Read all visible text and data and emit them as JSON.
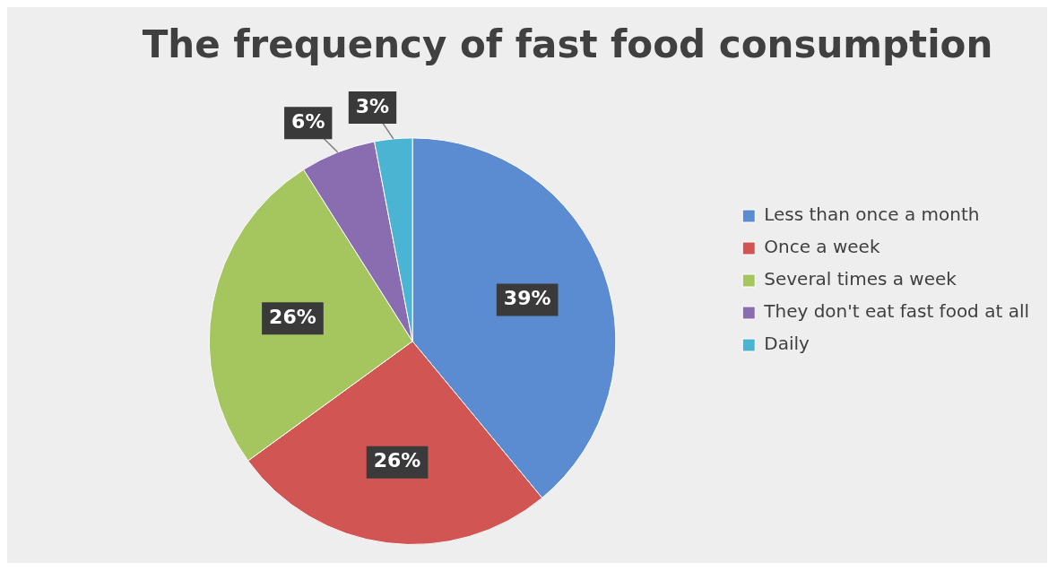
{
  "chart_data": {
    "type": "pie",
    "title": "The frequency of fast food consumption",
    "categories": [
      "Less than once a month",
      "Once a week",
      "Several times a week",
      "They don't eat fast food at all",
      "Daily"
    ],
    "values": [
      39,
      26,
      26,
      6,
      3
    ],
    "colors": [
      "#5b8bd0",
      "#d05553",
      "#a5c55f",
      "#8a6db0",
      "#4bb4d3"
    ],
    "value_labels": [
      "39%",
      "26%",
      "26%",
      "6%",
      "3%"
    ],
    "legend": "right"
  }
}
